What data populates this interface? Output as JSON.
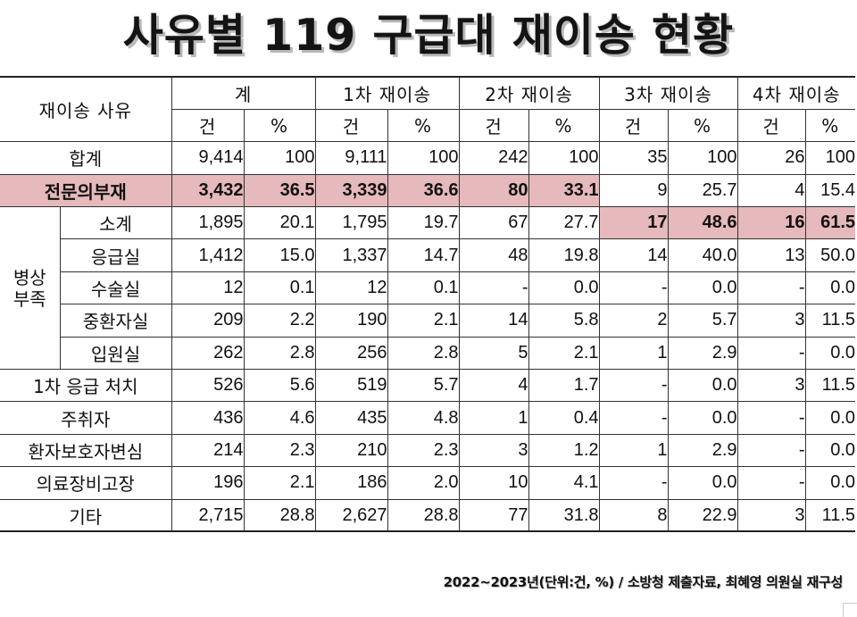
{
  "title": "사유별 119 구급대 재이송 현황",
  "header": {
    "reason": "재이송 사유",
    "groups": [
      "계",
      "1차 재이송",
      "2차 재이송",
      "3차 재이송",
      "4차 재이송"
    ],
    "count_unit": "건",
    "percent_unit": "%"
  },
  "group_label": "병상\n부족",
  "rows": [
    {
      "label": "합계",
      "values": [
        "9,414",
        "100",
        "9,111",
        "100",
        "242",
        "100",
        "35",
        "100",
        "26",
        "100"
      ]
    },
    {
      "label": "전문의부재",
      "values": [
        "3,432",
        "36.5",
        "3,339",
        "36.6",
        "80",
        "33.1",
        "9",
        "25.7",
        "4",
        "15.4"
      ]
    },
    {
      "label": "소계",
      "values": [
        "1,895",
        "20.1",
        "1,795",
        "19.7",
        "67",
        "27.7",
        "17",
        "48.6",
        "16",
        "61.5"
      ]
    },
    {
      "label": "응급실",
      "values": [
        "1,412",
        "15.0",
        "1,337",
        "14.7",
        "48",
        "19.8",
        "14",
        "40.0",
        "13",
        "50.0"
      ]
    },
    {
      "label": "수술실",
      "values": [
        "12",
        "0.1",
        "12",
        "0.1",
        "-",
        "0.0",
        "-",
        "0.0",
        "-",
        "0.0"
      ]
    },
    {
      "label": "중환자실",
      "values": [
        "209",
        "2.2",
        "190",
        "2.1",
        "14",
        "5.8",
        "2",
        "5.7",
        "3",
        "11.5"
      ]
    },
    {
      "label": "입원실",
      "values": [
        "262",
        "2.8",
        "256",
        "2.8",
        "5",
        "2.1",
        "1",
        "2.9",
        "-",
        "0.0"
      ]
    },
    {
      "label": "1차 응급 처치",
      "values": [
        "526",
        "5.6",
        "519",
        "5.7",
        "4",
        "1.7",
        "-",
        "0.0",
        "3",
        "11.5"
      ]
    },
    {
      "label": "주취자",
      "values": [
        "436",
        "4.6",
        "435",
        "4.8",
        "1",
        "0.4",
        "-",
        "0.0",
        "-",
        "0.0"
      ]
    },
    {
      "label": "환자보호자변심",
      "values": [
        "214",
        "2.3",
        "210",
        "2.3",
        "3",
        "1.2",
        "1",
        "2.9",
        "-",
        "0.0"
      ]
    },
    {
      "label": "의료장비고장",
      "values": [
        "196",
        "2.1",
        "186",
        "2.0",
        "10",
        "4.1",
        "-",
        "0.0",
        "-",
        "0.0"
      ]
    },
    {
      "label": "기타",
      "values": [
        "2,715",
        "28.8",
        "2,627",
        "28.8",
        "77",
        "31.8",
        "8",
        "22.9",
        "3",
        "11.5"
      ]
    }
  ],
  "highlight_color": "#e6b9bc",
  "footer": "2022~2023년(단위:건, %) / 소방청 제출자료, 최혜영 의원실 재구성"
}
